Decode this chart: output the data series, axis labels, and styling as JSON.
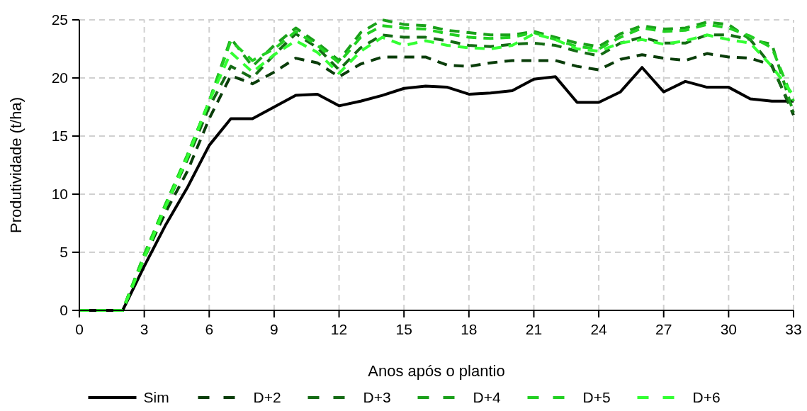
{
  "chart_data": {
    "type": "line",
    "xlabel": "Anos após o plantio",
    "ylabel": "Produtividade (t/ha)",
    "x": [
      0,
      1,
      2,
      3,
      4,
      5,
      6,
      7,
      8,
      9,
      10,
      11,
      12,
      13,
      14,
      15,
      16,
      17,
      18,
      19,
      20,
      21,
      22,
      23,
      24,
      25,
      26,
      27,
      28,
      29,
      30,
      31,
      32,
      33
    ],
    "xlim": [
      0,
      33
    ],
    "xticks": [
      0,
      3,
      6,
      9,
      12,
      15,
      18,
      21,
      24,
      27,
      30,
      33
    ],
    "ylim": [
      0,
      25
    ],
    "yticks": [
      0,
      5,
      10,
      15,
      20,
      25
    ],
    "grid": true,
    "legend": "bottom",
    "series": [
      {
        "name": "Sim",
        "color": "#000000",
        "line_style": "solid",
        "values": [
          0,
          0,
          0,
          3.8,
          7.4,
          10.6,
          14.2,
          16.5,
          16.5,
          17.5,
          18.5,
          18.6,
          17.6,
          18.0,
          18.5,
          19.1,
          19.3,
          19.2,
          18.6,
          18.7,
          18.9,
          19.9,
          20.1,
          17.9,
          17.9,
          18.8,
          20.9,
          18.8,
          19.7,
          19.2,
          19.2,
          18.2,
          18.0,
          18.0
        ]
      },
      {
        "name": "D+2",
        "color": "#0a3d0a",
        "line_style": "dashed",
        "values": [
          0,
          0,
          0,
          4.5,
          8.5,
          12,
          16.5,
          20.2,
          19.5,
          20.5,
          21.7,
          21.3,
          20.1,
          21.2,
          21.8,
          21.8,
          21.8,
          21.1,
          21.0,
          21.3,
          21.5,
          21.5,
          21.5,
          21.0,
          20.7,
          21.6,
          22.0,
          21.7,
          21.5,
          22.1,
          21.8,
          21.7,
          21.1,
          16.8
        ]
      },
      {
        "name": "D+3",
        "color": "#146b14",
        "line_style": "dashed",
        "values": [
          0,
          0,
          0,
          4.7,
          9,
          13,
          17.5,
          21,
          20,
          22,
          23.8,
          22.6,
          20.7,
          22.6,
          23.7,
          23.5,
          23.5,
          23.2,
          22.8,
          22.7,
          22.9,
          23.0,
          22.8,
          22.3,
          21.9,
          23.0,
          23.5,
          23.0,
          23.0,
          23.7,
          23.7,
          23.3,
          21.0,
          17.0
        ]
      },
      {
        "name": "D+4",
        "color": "#1aa01a",
        "line_style": "dashed",
        "values": [
          0,
          0,
          0,
          4.8,
          9.2,
          13.4,
          18,
          23.4,
          21,
          22.8,
          24.3,
          23.0,
          21.5,
          23.9,
          25.0,
          24.6,
          24.5,
          24.1,
          23.9,
          23.7,
          23.7,
          24.0,
          23.5,
          23.0,
          22.7,
          23.8,
          24.5,
          24.2,
          24.3,
          24.8,
          24.6,
          23.3,
          22.9,
          17.0
        ]
      },
      {
        "name": "D+5",
        "color": "#22d022",
        "line_style": "dashed",
        "values": [
          0,
          0,
          0,
          4.8,
          9.2,
          13.4,
          18,
          23.2,
          21.5,
          22.5,
          24,
          22.8,
          21.3,
          23.5,
          24.5,
          24.3,
          24.2,
          23.8,
          23.5,
          23.4,
          23.5,
          23.9,
          23.3,
          22.7,
          22.5,
          23.5,
          24.3,
          24.0,
          24.1,
          24.6,
          24.3,
          23.6,
          22.6,
          18.0
        ]
      },
      {
        "name": "D+6",
        "color": "#33ff33",
        "line_style": "dashed",
        "values": [
          0,
          0,
          0,
          4.5,
          9,
          13.2,
          18,
          22.2,
          20.5,
          22,
          23.2,
          22.2,
          20.4,
          22.3,
          23.5,
          22.8,
          23.2,
          22.8,
          22.6,
          22.5,
          22.8,
          23.8,
          23.3,
          22.5,
          22.3,
          23.0,
          23.3,
          22.9,
          23.2,
          23.7,
          23.3,
          23.0,
          21.0,
          18.5
        ]
      }
    ]
  }
}
